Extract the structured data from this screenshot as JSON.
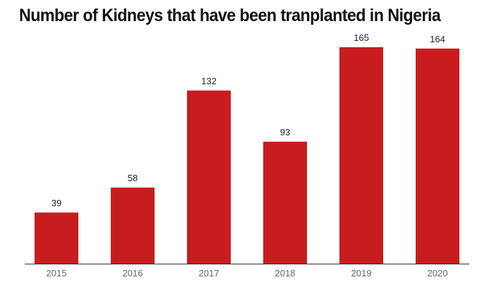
{
  "chart_data": {
    "type": "bar",
    "title": "Number of Kidneys that have been tranplanted in Nigeria",
    "categories": [
      "2015",
      "2016",
      "2017",
      "2018",
      "2019",
      "2020"
    ],
    "values": [
      39,
      58,
      132,
      93,
      165,
      164
    ],
    "ylim": [
      0,
      165
    ],
    "grid": false,
    "xlabel": "",
    "ylabel": "",
    "bar_color": "#c91c1e"
  }
}
